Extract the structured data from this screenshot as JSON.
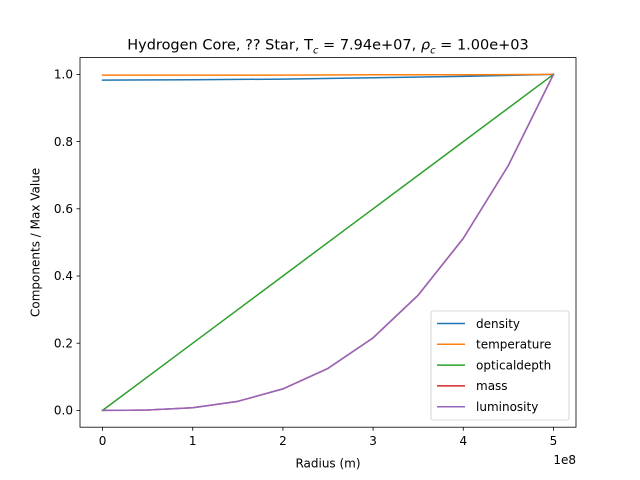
{
  "chart_data": {
    "type": "line",
    "title": {
      "prefix": "Hydrogen Core, ?? Star, T",
      "t_sub": "c",
      "t_value": " = 7.94e+07, ",
      "rho": "ρ",
      "rho_sub": "c",
      "rho_value": " = 1.00e+03"
    },
    "xlabel": "Radius (m)",
    "ylabel": "Components / Max Value",
    "x_offset_label": "1e8",
    "xlim": [
      -0.25,
      5.25
    ],
    "ylim": [
      -0.05,
      1.05
    ],
    "x_scale": 100000000,
    "x_ticks": [
      0,
      1,
      2,
      3,
      4,
      5
    ],
    "x_tick_labels": [
      "0",
      "1",
      "2",
      "3",
      "4",
      "5"
    ],
    "y_ticks": [
      0.0,
      0.2,
      0.4,
      0.6,
      0.8,
      1.0
    ],
    "y_tick_labels": [
      "0.0",
      "0.2",
      "0.4",
      "0.6",
      "0.8",
      "1.0"
    ],
    "grid": false,
    "legend_position": "lower-right",
    "series": [
      {
        "name": "density",
        "color": "#1f77b4",
        "x": [
          0,
          1,
          2,
          3,
          4,
          5
        ],
        "y": [
          0.983,
          0.984,
          0.986,
          0.99,
          0.994,
          1.0
        ]
      },
      {
        "name": "temperature",
        "color": "#ff7f0e",
        "x": [
          0,
          1,
          2,
          3,
          4,
          5
        ],
        "y": [
          0.998,
          0.998,
          0.998,
          0.999,
          0.999,
          1.0
        ]
      },
      {
        "name": "opticaldepth",
        "color": "#2ca02c",
        "x": [
          0,
          1,
          2,
          3,
          4,
          5
        ],
        "y": [
          0.0,
          0.2,
          0.4,
          0.6,
          0.8,
          1.0
        ]
      },
      {
        "name": "mass",
        "color": "#d62728",
        "x": [
          0,
          0.5,
          1,
          1.5,
          2,
          2.5,
          3,
          3.5,
          4,
          4.5,
          5
        ],
        "y": [
          0.0,
          0.001,
          0.008,
          0.027,
          0.064,
          0.125,
          0.216,
          0.343,
          0.512,
          0.729,
          1.0
        ]
      },
      {
        "name": "luminosity",
        "color": "#9467bd",
        "x": [
          0,
          0.5,
          1,
          1.5,
          2,
          2.5,
          3,
          3.5,
          4,
          4.5,
          5
        ],
        "y": [
          0.0,
          0.001,
          0.008,
          0.027,
          0.064,
          0.125,
          0.216,
          0.343,
          0.512,
          0.729,
          1.0
        ]
      }
    ]
  }
}
